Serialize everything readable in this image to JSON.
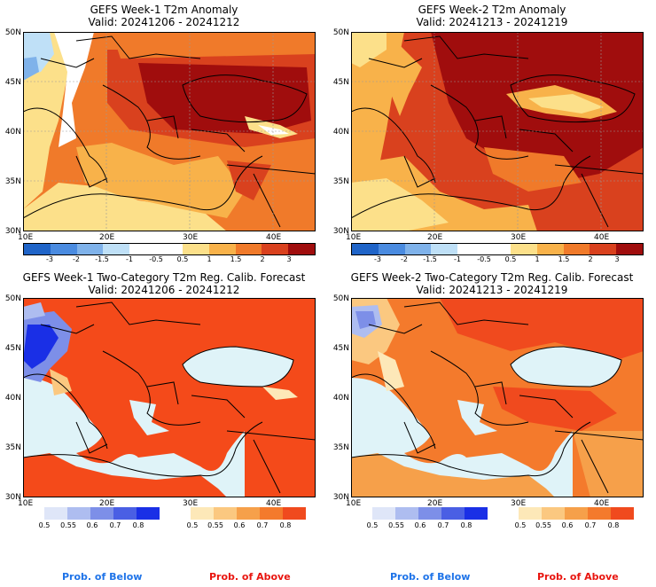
{
  "panels": [
    {
      "title": "GEFS Week-1 T2m Anomaly",
      "valid": "Valid: 20241206 - 20241212"
    },
    {
      "title": "GEFS Week-2 T2m Anomaly",
      "valid": "Valid: 20241213 - 20241219"
    },
    {
      "title": "GEFS Week-1 Two-Category T2m Reg. Calib. Forecast",
      "valid": "Valid: 20241206 - 20241212"
    },
    {
      "title": "GEFS Week-2 Two-Category T2m Reg. Calib. Forecast",
      "valid": "Valid: 20241213 - 20241219"
    }
  ],
  "axes": {
    "lat_labels": [
      "50N",
      "45N",
      "40N",
      "35N",
      "30N"
    ],
    "lon_labels": [
      "10E",
      "20E",
      "30E",
      "40E"
    ]
  },
  "anomaly_colorbar": {
    "labels": [
      "-3",
      "-2",
      "-1.5",
      "-1",
      "-0.5",
      "0.5",
      "1",
      "1.5",
      "2",
      "3"
    ],
    "colors": [
      "#1f64c8",
      "#4a8be0",
      "#7fb2ea",
      "#bfe0f7",
      "#ffffff",
      "#ffffff",
      "#fce08a",
      "#f8b24a",
      "#f07a2a",
      "#d9411e",
      "#a00d0d"
    ]
  },
  "below_colorbar": {
    "labels": [
      "0.5",
      "0.55",
      "0.6",
      "0.7",
      "0.8"
    ],
    "colors": [
      "#dfe6f8",
      "#aebdf0",
      "#7d8fe8",
      "#4a5fe4",
      "#1a2fe6"
    ]
  },
  "above_colorbar": {
    "labels": [
      "0.5",
      "0.55",
      "0.6",
      "0.7",
      "0.8"
    ],
    "colors": [
      "#fde8b8",
      "#fbc880",
      "#f6a04a",
      "#f47a2c",
      "#f04a1e"
    ]
  },
  "legend": {
    "below_label": "Prob. of Below",
    "above_label": "Prob. of Above",
    "below_color": "#1e73e8",
    "above_color": "#e8150f"
  },
  "colors": {
    "sea_prob": "#dff3f8",
    "land_prob": "#f44a1a"
  }
}
